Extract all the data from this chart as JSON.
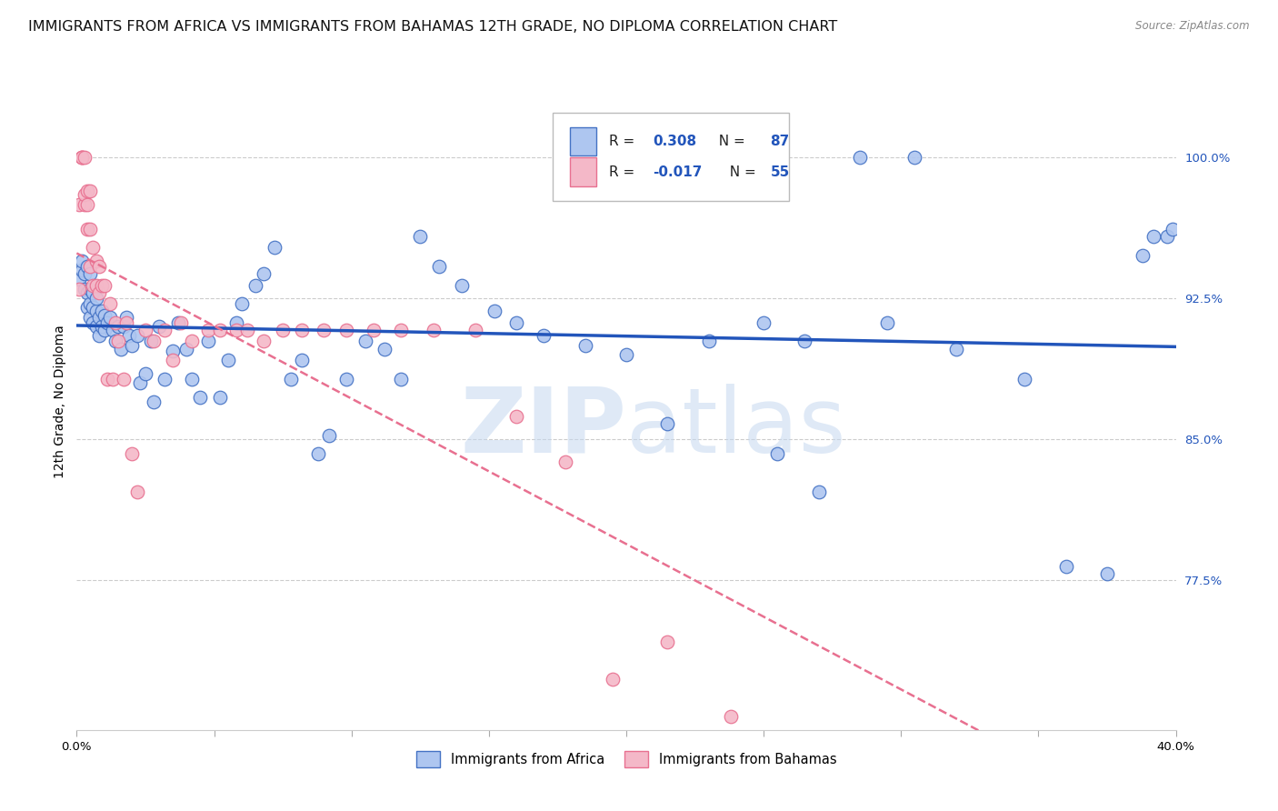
{
  "title": "IMMIGRANTS FROM AFRICA VS IMMIGRANTS FROM BAHAMAS 12TH GRADE, NO DIPLOMA CORRELATION CHART",
  "source": "Source: ZipAtlas.com",
  "ylabel": "12th Grade, No Diploma",
  "ytick_labels": [
    "77.5%",
    "85.0%",
    "92.5%",
    "100.0%"
  ],
  "ytick_values": [
    0.775,
    0.85,
    0.925,
    1.0
  ],
  "xlim": [
    0.0,
    0.4
  ],
  "ylim": [
    0.695,
    1.045
  ],
  "africa_color": "#aec6f0",
  "africa_edge_color": "#4472c4",
  "bahamas_color": "#f4b8c8",
  "bahamas_edge_color": "#e87090",
  "africa_line_color": "#2255bb",
  "bahamas_line_color": "#e87090",
  "R_africa": 0.308,
  "N_africa": 87,
  "R_bahamas": -0.017,
  "N_bahamas": 55,
  "legend_label_africa": "Immigrants from Africa",
  "legend_label_bahamas": "Immigrants from Bahamas",
  "africa_x": [
    0.001,
    0.002,
    0.002,
    0.003,
    0.003,
    0.004,
    0.004,
    0.004,
    0.005,
    0.005,
    0.005,
    0.005,
    0.006,
    0.006,
    0.006,
    0.007,
    0.007,
    0.007,
    0.008,
    0.008,
    0.009,
    0.009,
    0.01,
    0.01,
    0.011,
    0.012,
    0.013,
    0.014,
    0.015,
    0.016,
    0.017,
    0.018,
    0.019,
    0.02,
    0.022,
    0.023,
    0.025,
    0.027,
    0.028,
    0.03,
    0.032,
    0.035,
    0.037,
    0.04,
    0.042,
    0.045,
    0.048,
    0.052,
    0.055,
    0.058,
    0.06,
    0.065,
    0.068,
    0.072,
    0.078,
    0.082,
    0.088,
    0.092,
    0.098,
    0.105,
    0.112,
    0.118,
    0.125,
    0.132,
    0.14,
    0.152,
    0.16,
    0.17,
    0.185,
    0.2,
    0.215,
    0.23,
    0.255,
    0.27,
    0.295,
    0.32,
    0.345,
    0.36,
    0.375,
    0.388,
    0.392,
    0.397,
    0.399,
    0.25,
    0.265,
    0.285,
    0.305
  ],
  "africa_y": [
    0.935,
    0.94,
    0.945,
    0.93,
    0.938,
    0.92,
    0.928,
    0.942,
    0.915,
    0.922,
    0.93,
    0.938,
    0.912,
    0.92,
    0.928,
    0.91,
    0.918,
    0.925,
    0.905,
    0.915,
    0.91,
    0.918,
    0.908,
    0.916,
    0.912,
    0.915,
    0.908,
    0.902,
    0.91,
    0.898,
    0.91,
    0.915,
    0.905,
    0.9,
    0.905,
    0.88,
    0.885,
    0.902,
    0.87,
    0.91,
    0.882,
    0.897,
    0.912,
    0.898,
    0.882,
    0.872,
    0.902,
    0.872,
    0.892,
    0.912,
    0.922,
    0.932,
    0.938,
    0.952,
    0.882,
    0.892,
    0.842,
    0.852,
    0.882,
    0.902,
    0.898,
    0.882,
    0.958,
    0.942,
    0.932,
    0.918,
    0.912,
    0.905,
    0.9,
    0.895,
    0.858,
    0.902,
    0.842,
    0.822,
    0.912,
    0.898,
    0.882,
    0.782,
    0.778,
    0.948,
    0.958,
    0.958,
    0.962,
    0.912,
    0.902,
    1.0,
    1.0
  ],
  "bahamas_x": [
    0.001,
    0.001,
    0.002,
    0.002,
    0.002,
    0.003,
    0.003,
    0.003,
    0.004,
    0.004,
    0.004,
    0.005,
    0.005,
    0.005,
    0.006,
    0.006,
    0.007,
    0.007,
    0.008,
    0.008,
    0.009,
    0.01,
    0.011,
    0.012,
    0.013,
    0.014,
    0.015,
    0.017,
    0.018,
    0.02,
    0.022,
    0.025,
    0.028,
    0.032,
    0.035,
    0.038,
    0.042,
    0.048,
    0.052,
    0.058,
    0.062,
    0.068,
    0.075,
    0.082,
    0.09,
    0.098,
    0.108,
    0.118,
    0.13,
    0.145,
    0.16,
    0.178,
    0.195,
    0.215,
    0.238
  ],
  "bahamas_y": [
    0.93,
    0.975,
    1.0,
    1.0,
    1.0,
    0.975,
    1.0,
    0.98,
    0.975,
    0.962,
    0.982,
    0.942,
    0.962,
    0.982,
    0.932,
    0.952,
    0.932,
    0.945,
    0.928,
    0.942,
    0.932,
    0.932,
    0.882,
    0.922,
    0.882,
    0.912,
    0.902,
    0.882,
    0.912,
    0.842,
    0.822,
    0.908,
    0.902,
    0.908,
    0.892,
    0.912,
    0.902,
    0.908,
    0.908,
    0.908,
    0.908,
    0.902,
    0.908,
    0.908,
    0.908,
    0.908,
    0.908,
    0.908,
    0.908,
    0.908,
    0.862,
    0.838,
    0.722,
    0.742,
    0.702
  ],
  "watermark_zip": "ZIP",
  "watermark_atlas": "atlas",
  "background_color": "#ffffff",
  "grid_color": "#cccccc",
  "title_fontsize": 11.5,
  "axis_label_fontsize": 10,
  "tick_fontsize": 9.5
}
